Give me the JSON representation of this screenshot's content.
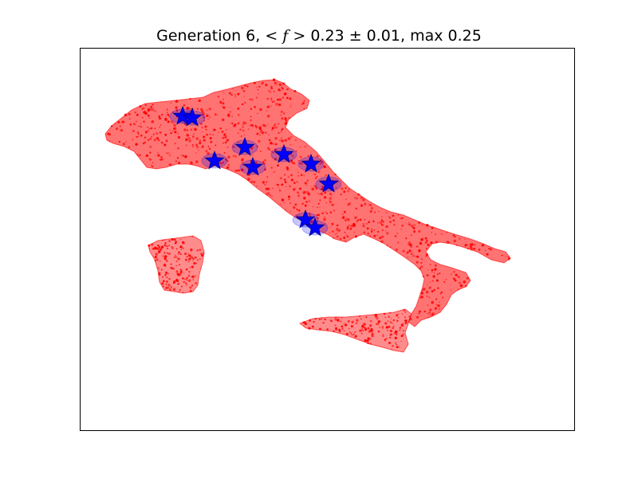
{
  "chart_data": {
    "type": "scatter",
    "title": {
      "prefix": "Generation 6, ",
      "math": "< f >",
      "mean": "0.23",
      "pm": "±",
      "std": "0.01",
      "max_label": "max",
      "max": "0.25"
    },
    "xlabel": "",
    "ylabel": "",
    "grid": false,
    "legend": "none",
    "colors": {
      "population_points": "#ff0000",
      "stations": "#0000ff",
      "star_edge": "#000080",
      "coverage": "#0000ff"
    },
    "regions": [
      {
        "name": "mainland"
      },
      {
        "name": "sardinia"
      },
      {
        "name": "sicily"
      }
    ],
    "stations": [
      {
        "x": 229,
        "y": 146
      },
      {
        "x": 241,
        "y": 148
      },
      {
        "x": 269,
        "y": 202
      },
      {
        "x": 307,
        "y": 185
      },
      {
        "x": 317,
        "y": 210
      },
      {
        "x": 356,
        "y": 194
      },
      {
        "x": 390,
        "y": 206
      },
      {
        "x": 412,
        "y": 231
      },
      {
        "x": 383,
        "y": 276
      },
      {
        "x": 395,
        "y": 286
      }
    ]
  }
}
